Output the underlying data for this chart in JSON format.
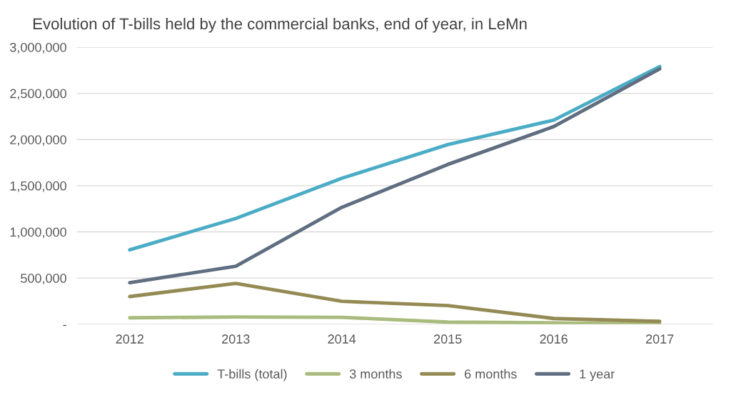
{
  "chart_data": {
    "type": "line",
    "title": "Evolution of T-bills held by the commercial banks, end of year, in LeMn",
    "categories": [
      "2012",
      "2013",
      "2014",
      "2015",
      "2016",
      "2017"
    ],
    "series": [
      {
        "name": "T-bills (total)",
        "color": "#4bacc6",
        "values": [
          805000,
          1145000,
          1580000,
          1945000,
          2210000,
          2790000
        ]
      },
      {
        "name": "3 months",
        "color": "#a9bb7d",
        "values": [
          70000,
          78000,
          75000,
          23000,
          15000,
          3000
        ]
      },
      {
        "name": "6 months",
        "color": "#948a54",
        "values": [
          300000,
          442000,
          248000,
          202000,
          62000,
          31000
        ]
      },
      {
        "name": "1 year",
        "color": "#5f6e80",
        "values": [
          450000,
          628000,
          1265000,
          1730000,
          2140000,
          2765000
        ]
      }
    ],
    "ylim": [
      0,
      3000000
    ],
    "yticks": [
      {
        "value": 0,
        "label": "-"
      },
      {
        "value": 500000,
        "label": "500,000"
      },
      {
        "value": 1000000,
        "label": "1,000,000"
      },
      {
        "value": 1500000,
        "label": "1,500,000"
      },
      {
        "value": 2000000,
        "label": "2,000,000"
      },
      {
        "value": 2500000,
        "label": "2,500,000"
      },
      {
        "value": 3000000,
        "label": "3,000,000"
      }
    ],
    "grid": "y",
    "legend": "bottom",
    "marker": "none",
    "line_style": "solid"
  }
}
